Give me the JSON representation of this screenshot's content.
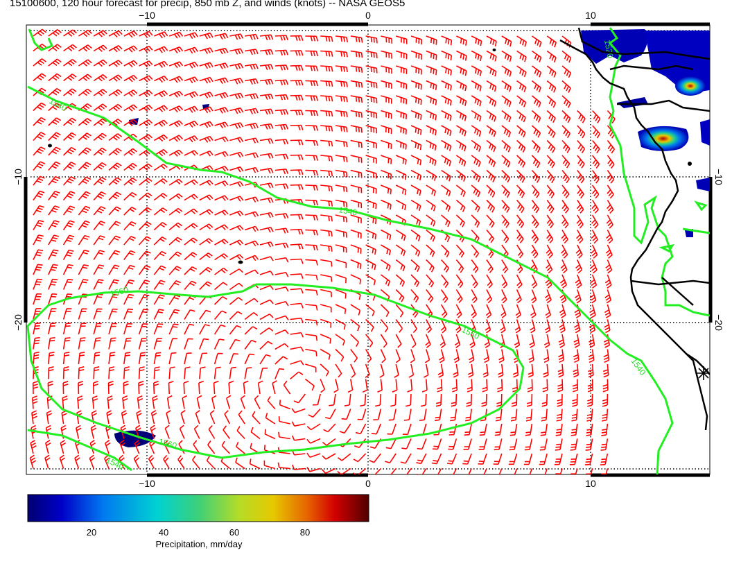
{
  "title": "15100600, 120 hour forecast for precip, 850 mb Z, and winds (knots) -- NASA GEOS5",
  "axes": {
    "lon_ticks": [
      "−10",
      "0",
      "10"
    ],
    "lat_ticks": [
      "−10",
      "−20"
    ]
  },
  "contour_labels": [
    "1540",
    "1540",
    "1560",
    "1560",
    "1560",
    "1540",
    "1540",
    "1520"
  ],
  "colorbar": {
    "ticks": [
      "20",
      "40",
      "60",
      "80"
    ],
    "label": "Precipitation, mm/day"
  },
  "colors": {
    "wind_barbs": "#ff0000",
    "contours": "#22ee22",
    "coastline": "#000000"
  }
}
